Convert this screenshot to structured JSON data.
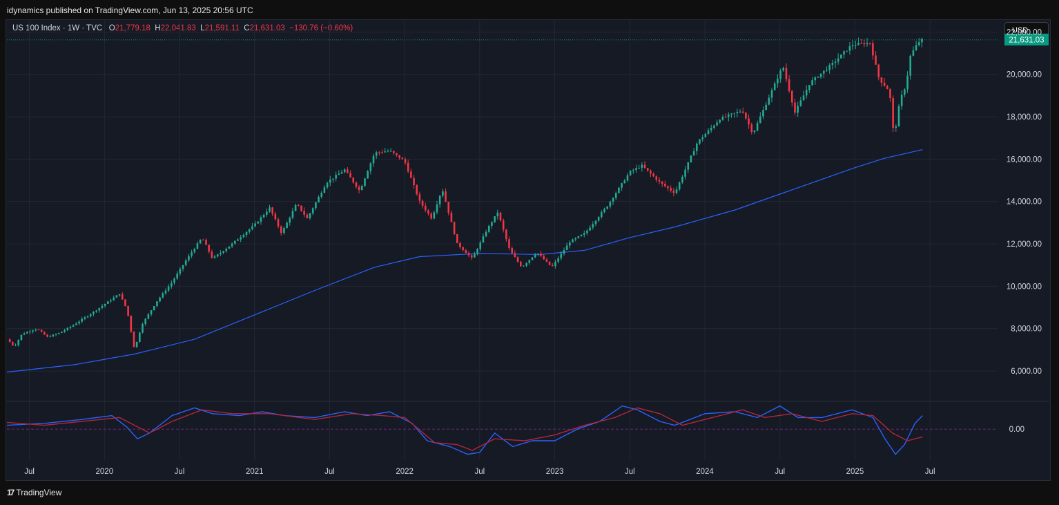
{
  "header": {
    "publisher_line": "idynamics published on TradingView.com, Jun 13, 2025 20:56 UTC"
  },
  "legend": {
    "symbol": "US 100 Index · 1W · TVC",
    "o_label": "O",
    "o_value": "21,779.18",
    "h_label": "H",
    "h_value": "22,041.83",
    "l_label": "L",
    "l_value": "21,591.11",
    "c_label": "C",
    "c_value": "21,631.03",
    "change": "−130.76 (−0.60%)"
  },
  "currency_button": "USD",
  "last_price_label": "21,631.03",
  "footer": {
    "brand": "TradingView",
    "logo_glyph": "17"
  },
  "colors": {
    "up": "#26a69a",
    "up_candle": "#22ab94",
    "down": "#f23645",
    "ma": "#2962ff",
    "osc_fast": "#2962ff",
    "osc_slow": "#b2263a",
    "price_tag": "#089981"
  },
  "chart_data": [
    {
      "type": "candlestick",
      "interval": "1W",
      "ylim": [
        4600,
        22600
      ],
      "y_ticks": [
        6000,
        8000,
        10000,
        12000,
        14000,
        16000,
        18000,
        20000,
        22000
      ],
      "y_tick_labels": [
        "6,000.00",
        "8,000.00",
        "10,000.00",
        "12,000.00",
        "14,000.00",
        "16,000.00",
        "18,000.00",
        "20,000.00",
        "22,000.00"
      ],
      "x_ticks": [
        "Jul",
        "2020",
        "Jul",
        "2021",
        "Jul",
        "2022",
        "Jul",
        "2023",
        "Jul",
        "2024",
        "Jul",
        "2025",
        "Jul"
      ],
      "x_tick_pos": [
        2019.5,
        2020.0,
        2020.5,
        2021.0,
        2021.5,
        2022.0,
        2022.5,
        2023.0,
        2023.5,
        2024.0,
        2024.5,
        2025.0,
        2025.5
      ],
      "x_range": [
        2019.35,
        2025.95
      ],
      "last_date": 2025.45,
      "last_close": 21631.03,
      "price_anchors": [
        [
          2019.35,
          7500
        ],
        [
          2019.4,
          7150
        ],
        [
          2019.45,
          7750
        ],
        [
          2019.55,
          8000
        ],
        [
          2019.62,
          7600
        ],
        [
          2019.7,
          7800
        ],
        [
          2019.8,
          8200
        ],
        [
          2019.95,
          8900
        ],
        [
          2020.1,
          9650
        ],
        [
          2020.15,
          8900
        ],
        [
          2020.2,
          7000
        ],
        [
          2020.25,
          8200
        ],
        [
          2020.35,
          9300
        ],
        [
          2020.45,
          10200
        ],
        [
          2020.55,
          11300
        ],
        [
          2020.65,
          12300
        ],
        [
          2020.72,
          11300
        ],
        [
          2020.85,
          12000
        ],
        [
          2021.0,
          12900
        ],
        [
          2021.1,
          13700
        ],
        [
          2021.18,
          12500
        ],
        [
          2021.28,
          13900
        ],
        [
          2021.35,
          13200
        ],
        [
          2021.48,
          14900
        ],
        [
          2021.6,
          15500
        ],
        [
          2021.7,
          14500
        ],
        [
          2021.8,
          16300
        ],
        [
          2021.9,
          16400
        ],
        [
          2022.0,
          15900
        ],
        [
          2022.1,
          14000
        ],
        [
          2022.18,
          13200
        ],
        [
          2022.25,
          14600
        ],
        [
          2022.35,
          12000
        ],
        [
          2022.45,
          11300
        ],
        [
          2022.55,
          12700
        ],
        [
          2022.62,
          13500
        ],
        [
          2022.7,
          11700
        ],
        [
          2022.78,
          10900
        ],
        [
          2022.88,
          11600
        ],
        [
          2022.98,
          10900
        ],
        [
          2023.1,
          12100
        ],
        [
          2023.2,
          12500
        ],
        [
          2023.35,
          13800
        ],
        [
          2023.5,
          15400
        ],
        [
          2023.58,
          15700
        ],
        [
          2023.7,
          14900
        ],
        [
          2023.8,
          14400
        ],
        [
          2023.95,
          16800
        ],
        [
          2024.1,
          17900
        ],
        [
          2024.25,
          18300
        ],
        [
          2024.32,
          17200
        ],
        [
          2024.4,
          18500
        ],
        [
          2024.52,
          20400
        ],
        [
          2024.6,
          18200
        ],
        [
          2024.7,
          19600
        ],
        [
          2024.85,
          20500
        ],
        [
          2024.98,
          21400
        ],
        [
          2025.1,
          21500
        ],
        [
          2025.16,
          19800
        ],
        [
          2025.23,
          19200
        ],
        [
          2025.26,
          17000
        ],
        [
          2025.3,
          18800
        ],
        [
          2025.34,
          19500
        ],
        [
          2025.37,
          20900
        ],
        [
          2025.42,
          21500
        ],
        [
          2025.45,
          21631
        ]
      ],
      "ma_anchors": [
        [
          2019.35,
          5950
        ],
        [
          2019.8,
          6300
        ],
        [
          2020.2,
          6800
        ],
        [
          2020.6,
          7500
        ],
        [
          2021.0,
          8650
        ],
        [
          2021.4,
          9800
        ],
        [
          2021.8,
          10900
        ],
        [
          2022.1,
          11400
        ],
        [
          2022.5,
          11550
        ],
        [
          2022.9,
          11500
        ],
        [
          2023.2,
          11700
        ],
        [
          2023.5,
          12300
        ],
        [
          2023.8,
          12800
        ],
        [
          2024.2,
          13600
        ],
        [
          2024.6,
          14600
        ],
        [
          2025.0,
          15600
        ],
        [
          2025.2,
          16050
        ],
        [
          2025.45,
          16450
        ]
      ]
    },
    {
      "type": "oscillator",
      "zero_line": 0,
      "y_tick_labels": [
        "0.00"
      ],
      "ylim": [
        -1.6,
        1.4
      ],
      "fast_anchors": [
        [
          2019.35,
          0.2
        ],
        [
          2019.6,
          0.3
        ],
        [
          2019.85,
          0.5
        ],
        [
          2020.05,
          0.7
        ],
        [
          2020.15,
          0.1
        ],
        [
          2020.22,
          -0.5
        ],
        [
          2020.3,
          -0.2
        ],
        [
          2020.45,
          0.7
        ],
        [
          2020.6,
          1.1
        ],
        [
          2020.72,
          0.8
        ],
        [
          2020.9,
          0.7
        ],
        [
          2021.05,
          0.9
        ],
        [
          2021.2,
          0.7
        ],
        [
          2021.4,
          0.6
        ],
        [
          2021.6,
          0.9
        ],
        [
          2021.75,
          0.7
        ],
        [
          2021.9,
          0.9
        ],
        [
          2022.05,
          0.3
        ],
        [
          2022.15,
          -0.6
        ],
        [
          2022.3,
          -0.9
        ],
        [
          2022.42,
          -1.3
        ],
        [
          2022.5,
          -1.2
        ],
        [
          2022.6,
          -0.2
        ],
        [
          2022.72,
          -0.9
        ],
        [
          2022.85,
          -0.6
        ],
        [
          2023.0,
          -0.6
        ],
        [
          2023.15,
          0.0
        ],
        [
          2023.3,
          0.4
        ],
        [
          2023.45,
          1.2
        ],
        [
          2023.55,
          1.0
        ],
        [
          2023.7,
          0.4
        ],
        [
          2023.8,
          0.2
        ],
        [
          2024.0,
          0.8
        ],
        [
          2024.2,
          0.9
        ],
        [
          2024.35,
          0.6
        ],
        [
          2024.5,
          1.2
        ],
        [
          2024.62,
          0.6
        ],
        [
          2024.78,
          0.6
        ],
        [
          2024.98,
          1.0
        ],
        [
          2025.12,
          0.6
        ],
        [
          2025.2,
          -0.5
        ],
        [
          2025.27,
          -1.3
        ],
        [
          2025.33,
          -0.8
        ],
        [
          2025.4,
          0.3
        ],
        [
          2025.45,
          0.7
        ]
      ],
      "slow_anchors": [
        [
          2019.35,
          0.35
        ],
        [
          2019.6,
          0.2
        ],
        [
          2019.85,
          0.4
        ],
        [
          2020.1,
          0.6
        ],
        [
          2020.2,
          0.2
        ],
        [
          2020.3,
          -0.2
        ],
        [
          2020.45,
          0.4
        ],
        [
          2020.65,
          1.0
        ],
        [
          2020.85,
          0.8
        ],
        [
          2021.1,
          0.8
        ],
        [
          2021.4,
          0.5
        ],
        [
          2021.65,
          0.8
        ],
        [
          2021.85,
          0.7
        ],
        [
          2022.0,
          0.6
        ],
        [
          2022.2,
          -0.7
        ],
        [
          2022.35,
          -0.8
        ],
        [
          2022.45,
          -1.1
        ],
        [
          2022.6,
          -0.5
        ],
        [
          2022.8,
          -0.6
        ],
        [
          2023.0,
          -0.3
        ],
        [
          2023.2,
          0.2
        ],
        [
          2023.4,
          0.6
        ],
        [
          2023.55,
          1.1
        ],
        [
          2023.7,
          0.8
        ],
        [
          2023.85,
          0.2
        ],
        [
          2024.05,
          0.6
        ],
        [
          2024.25,
          1.0
        ],
        [
          2024.4,
          0.6
        ],
        [
          2024.58,
          0.8
        ],
        [
          2024.78,
          0.4
        ],
        [
          2024.98,
          0.8
        ],
        [
          2025.12,
          0.7
        ],
        [
          2025.25,
          -0.2
        ],
        [
          2025.35,
          -0.6
        ],
        [
          2025.45,
          -0.4
        ]
      ]
    }
  ]
}
